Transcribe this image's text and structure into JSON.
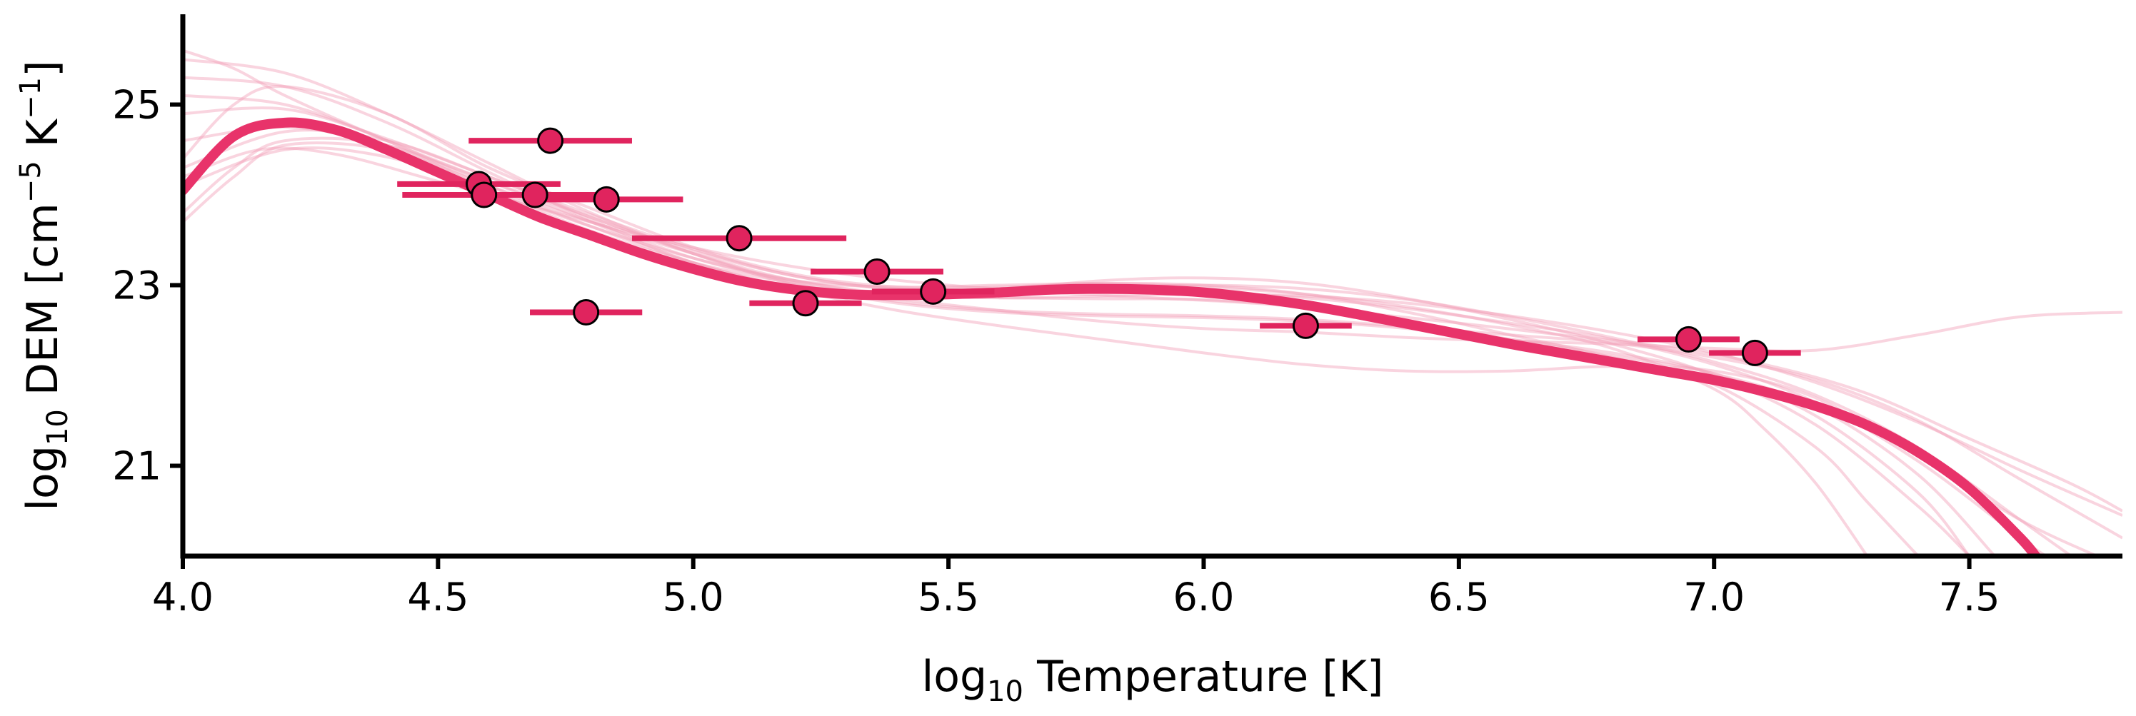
{
  "chart_data": {
    "type": "scatter",
    "title": "",
    "xlabel_prefix": "log",
    "xlabel_sub": "10",
    "xlabel_rest": " Temperature [K]",
    "ylabel_prefix": "log",
    "ylabel_sub": "10",
    "ylabel_mid": " DEM [cm",
    "ylabel_sup1": "−5",
    "ylabel_mid2": " K",
    "ylabel_sup2": "−1",
    "ylabel_end": "]",
    "xlim": [
      4.0,
      7.8
    ],
    "ylim": [
      20.0,
      26.0
    ],
    "xticks": [
      4.0,
      4.5,
      5.0,
      5.5,
      6.0,
      6.5,
      7.0,
      7.5
    ],
    "xtick_labels": [
      "4.0",
      "4.5",
      "5.0",
      "5.5",
      "6.0",
      "6.5",
      "7.0",
      "7.5"
    ],
    "yticks": [
      21,
      23,
      25
    ],
    "ytick_labels": [
      "21",
      "23",
      "25"
    ],
    "grid": false,
    "colors": {
      "main": "#e8336a",
      "samples": "#f2a0b8",
      "points": "#e0245e",
      "errorbar": "#e0245e",
      "marker_edge": "#000000"
    },
    "points": [
      {
        "x": 4.72,
        "y": 24.6,
        "xerr": 0.16
      },
      {
        "x": 4.58,
        "y": 24.12,
        "xerr": 0.16
      },
      {
        "x": 4.59,
        "y": 24.0,
        "xerr": 0.16
      },
      {
        "x": 4.69,
        "y": 24.0,
        "xerr": 0.16
      },
      {
        "x": 4.83,
        "y": 23.95,
        "xerr": 0.15
      },
      {
        "x": 4.79,
        "y": 22.7,
        "xerr": 0.11
      },
      {
        "x": 5.09,
        "y": 23.52,
        "xerr": 0.21
      },
      {
        "x": 5.22,
        "y": 22.8,
        "xerr": 0.11
      },
      {
        "x": 5.36,
        "y": 23.15,
        "xerr": 0.13
      },
      {
        "x": 5.47,
        "y": 22.93,
        "xerr": 0.12
      },
      {
        "x": 6.2,
        "y": 22.55,
        "xerr": 0.09
      },
      {
        "x": 6.95,
        "y": 22.4,
        "xerr": 0.1
      },
      {
        "x": 7.08,
        "y": 22.25,
        "xerr": 0.09
      }
    ],
    "best_fit": {
      "x": [
        4.0,
        4.1,
        4.2,
        4.3,
        4.4,
        4.5,
        4.6,
        4.7,
        4.8,
        4.9,
        5.0,
        5.1,
        5.2,
        5.3,
        5.4,
        5.5,
        5.6,
        5.7,
        5.8,
        5.9,
        6.0,
        6.1,
        6.2,
        6.3,
        6.4,
        6.5,
        6.6,
        6.7,
        6.8,
        6.9,
        7.0,
        7.1,
        7.2,
        7.3,
        7.4,
        7.5,
        7.6,
        7.63
      ],
      "y": [
        24.05,
        24.65,
        24.8,
        24.72,
        24.5,
        24.25,
        24.0,
        23.75,
        23.55,
        23.35,
        23.18,
        23.04,
        22.95,
        22.9,
        22.89,
        22.9,
        22.92,
        22.95,
        22.96,
        22.95,
        22.92,
        22.86,
        22.78,
        22.68,
        22.57,
        22.46,
        22.35,
        22.25,
        22.15,
        22.05,
        21.95,
        21.82,
        21.66,
        21.45,
        21.15,
        20.75,
        20.2,
        20.0
      ]
    },
    "samples": [
      {
        "x": [
          4.0,
          4.1,
          4.2,
          4.4,
          4.6,
          4.8,
          5.0,
          5.2,
          5.4,
          5.6,
          5.8,
          6.0,
          6.2,
          6.4,
          6.6,
          6.8,
          7.0,
          7.2,
          7.4,
          7.55
        ],
        "y": [
          25.6,
          25.4,
          25.1,
          24.6,
          24.15,
          23.7,
          23.25,
          22.98,
          22.88,
          22.86,
          22.85,
          22.84,
          22.76,
          22.6,
          22.4,
          22.22,
          22.02,
          21.65,
          20.9,
          20.0
        ]
      },
      {
        "x": [
          4.0,
          4.1,
          4.2,
          4.4,
          4.6,
          4.8,
          5.0,
          5.2,
          5.4,
          5.6,
          5.8,
          6.0,
          6.2,
          6.4,
          6.6,
          6.8,
          7.0,
          7.2,
          7.4,
          7.6,
          7.8
        ],
        "y": [
          23.8,
          24.3,
          24.6,
          24.55,
          24.05,
          23.6,
          23.25,
          23.02,
          22.85,
          22.72,
          22.6,
          22.52,
          22.48,
          22.42,
          22.38,
          22.35,
          22.3,
          22.28,
          22.45,
          22.65,
          22.7
        ]
      },
      {
        "x": [
          4.0,
          4.1,
          4.2,
          4.4,
          4.6,
          4.8,
          5.0,
          5.2,
          5.4,
          5.6,
          5.8,
          6.0,
          6.2,
          6.4,
          6.6,
          6.8,
          7.0,
          7.2,
          7.3,
          7.4
        ],
        "y": [
          24.4,
          25.0,
          25.2,
          24.9,
          24.3,
          23.85,
          23.42,
          23.12,
          22.98,
          22.98,
          23.02,
          23.0,
          22.9,
          22.7,
          22.45,
          22.2,
          21.9,
          21.2,
          20.6,
          20.0
        ]
      },
      {
        "x": [
          4.0,
          4.15,
          4.3,
          4.5,
          4.7,
          4.9,
          5.1,
          5.3,
          5.5,
          5.7,
          5.9,
          6.1,
          6.3,
          6.5,
          6.7,
          6.9,
          7.1,
          7.3,
          7.5,
          7.7,
          7.8
        ],
        "y": [
          24.2,
          24.5,
          24.45,
          24.15,
          23.85,
          23.55,
          23.3,
          23.12,
          23.0,
          22.92,
          22.86,
          22.8,
          22.7,
          22.58,
          22.45,
          22.32,
          22.12,
          21.8,
          21.3,
          20.8,
          20.5
        ]
      },
      {
        "x": [
          4.0,
          4.2,
          4.4,
          4.6,
          4.8,
          5.0,
          5.2,
          5.4,
          5.6,
          5.8,
          6.0,
          6.2,
          6.4,
          6.6,
          6.8,
          7.0,
          7.2,
          7.4,
          7.6,
          7.75
        ],
        "y": [
          25.1,
          25.0,
          24.6,
          24.1,
          23.65,
          23.25,
          22.95,
          22.72,
          22.55,
          22.4,
          22.25,
          22.12,
          22.05,
          22.05,
          22.1,
          22.05,
          21.75,
          21.1,
          20.4,
          20.0
        ]
      },
      {
        "x": [
          4.0,
          4.1,
          4.2,
          4.4,
          4.6,
          4.8,
          5.0,
          5.2,
          5.4,
          5.6,
          5.8,
          6.0,
          6.2,
          6.4,
          6.6,
          6.8,
          7.0,
          7.2,
          7.4,
          7.5
        ],
        "y": [
          23.7,
          24.2,
          24.55,
          24.5,
          24.1,
          23.7,
          23.35,
          23.05,
          22.9,
          22.95,
          23.05,
          23.08,
          23.02,
          22.85,
          22.62,
          22.35,
          22.0,
          21.45,
          20.55,
          20.0
        ]
      },
      {
        "x": [
          4.0,
          4.2,
          4.4,
          4.6,
          4.8,
          5.0,
          5.2,
          5.4,
          5.6,
          5.8,
          6.0,
          6.2,
          6.4,
          6.6,
          6.8,
          7.0,
          7.2,
          7.4,
          7.6,
          7.65
        ],
        "y": [
          24.9,
          24.95,
          24.62,
          24.2,
          23.78,
          23.4,
          23.1,
          22.95,
          22.92,
          22.93,
          22.92,
          22.86,
          22.74,
          22.58,
          22.4,
          22.12,
          21.7,
          21.05,
          20.2,
          20.0
        ]
      },
      {
        "x": [
          4.0,
          4.2,
          4.4,
          4.6,
          4.8,
          5.0,
          5.2,
          5.4,
          5.6,
          5.8,
          6.0,
          6.2,
          6.4,
          6.6,
          6.8,
          7.0,
          7.2,
          7.4,
          7.6,
          7.8
        ],
        "y": [
          24.6,
          24.75,
          24.55,
          24.15,
          23.75,
          23.35,
          23.02,
          22.82,
          22.72,
          22.68,
          22.66,
          22.62,
          22.54,
          22.45,
          22.36,
          22.2,
          21.95,
          21.5,
          20.85,
          20.2
        ]
      },
      {
        "x": [
          4.0,
          4.2,
          4.4,
          4.6,
          4.8,
          5.0,
          5.2,
          5.4,
          5.6,
          5.8,
          6.0,
          6.2,
          6.4,
          6.6,
          6.8,
          7.0,
          7.1,
          7.2,
          7.3
        ],
        "y": [
          25.3,
          25.2,
          24.8,
          24.25,
          23.72,
          23.3,
          23.05,
          22.98,
          23.0,
          23.02,
          22.98,
          22.9,
          22.76,
          22.56,
          22.3,
          21.85,
          21.4,
          20.8,
          20.0
        ]
      },
      {
        "x": [
          4.0,
          4.2,
          4.4,
          4.6,
          4.8,
          5.0,
          5.2,
          5.4,
          5.6,
          5.8,
          6.0,
          6.2,
          6.4,
          6.6,
          6.8,
          7.0,
          7.2,
          7.4,
          7.6,
          7.8
        ],
        "y": [
          24.1,
          24.5,
          24.42,
          24.05,
          23.65,
          23.3,
          23.05,
          22.9,
          22.86,
          22.88,
          22.9,
          22.88,
          22.8,
          22.66,
          22.48,
          22.25,
          21.92,
          21.48,
          20.95,
          20.45
        ]
      },
      {
        "x": [
          4.0,
          4.2,
          4.4,
          4.6,
          4.8,
          5.0,
          5.2,
          5.4,
          5.6,
          5.8,
          6.0,
          6.2,
          6.4,
          6.6,
          6.8,
          7.0,
          7.2,
          7.4,
          7.5
        ],
        "y": [
          25.5,
          25.35,
          24.9,
          24.35,
          23.8,
          23.35,
          23.0,
          22.8,
          22.7,
          22.66,
          22.64,
          22.6,
          22.52,
          22.4,
          22.25,
          22.02,
          21.55,
          20.7,
          20.0
        ]
      },
      {
        "x": [
          4.0,
          4.2,
          4.4,
          4.6,
          4.8,
          5.0,
          5.2,
          5.4,
          5.6,
          5.8,
          6.0,
          6.2,
          6.4,
          6.6,
          6.8,
          7.0,
          7.2,
          7.4,
          7.6,
          7.7
        ],
        "y": [
          24.3,
          24.7,
          24.6,
          24.2,
          23.75,
          23.38,
          23.1,
          22.96,
          22.94,
          22.98,
          23.0,
          22.96,
          22.84,
          22.65,
          22.42,
          22.15,
          21.78,
          21.2,
          20.4,
          20.0
        ]
      }
    ]
  }
}
